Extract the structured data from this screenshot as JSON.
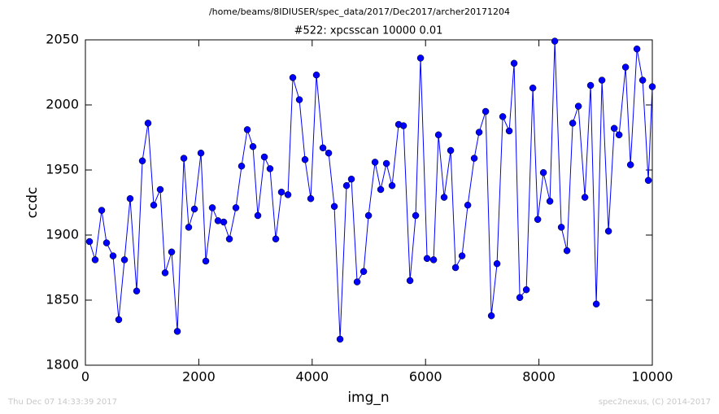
{
  "chart_data": {
    "type": "line",
    "title": "/home/beams/8IDIUSER/spec_data/2017/Dec2017/archer20171204",
    "subtitle": "#522: xpcsscan 10000 0.01",
    "xlabel": "img_n",
    "ylabel": "ccdc",
    "annotations": [
      "Thu Dec 07 14:33:39 2017",
      "spec2nexus, (C) 2014-2017"
    ],
    "x": [
      72,
      172,
      287,
      373,
      488,
      588,
      689,
      789,
      904,
      1005,
      1105,
      1205,
      1320,
      1406,
      1521,
      1622,
      1737,
      1822,
      1923,
      2038,
      2124,
      2239,
      2339,
      2440,
      2540,
      2655,
      2755,
      2856,
      2956,
      3042,
      3157,
      3257,
      3358,
      3458,
      3573,
      3659,
      3774,
      3874,
      3975,
      4075,
      4190,
      4291,
      4391,
      4492,
      4606,
      4692,
      4793,
      4908,
      4994,
      5109,
      5209,
      5310,
      5410,
      5525,
      5611,
      5726,
      5826,
      5912,
      6027,
      6142,
      6228,
      6328,
      6443,
      6529,
      6644,
      6745,
      6859,
      6945,
      7060,
      7161,
      7261,
      7362,
      7476,
      7562,
      7663,
      7778,
      7893,
      7979,
      8079,
      8194,
      8280,
      8395,
      8495,
      8596,
      8696,
      8811,
      8911,
      9012,
      9112,
      9227,
      9328,
      9414,
      9528,
      9615,
      9729,
      9830,
      9930,
      10000
    ],
    "series": [
      {
        "name": "ccdc",
        "color": "#0000ff",
        "values": [
          1895,
          1881,
          1919,
          1894,
          1884,
          1835,
          1881,
          1928,
          1857,
          1957,
          1986,
          1923,
          1935,
          1871,
          1887,
          1826,
          1959,
          1906,
          1920,
          1963,
          1880,
          1921,
          1911,
          1910,
          1897,
          1921,
          1953,
          1981,
          1968,
          1915,
          1960,
          1951,
          1897,
          1933,
          1931,
          2021,
          2004,
          1958,
          1928,
          2023,
          1967,
          1963,
          1922,
          1820,
          1938,
          1943,
          1864,
          1872,
          1915,
          1956,
          1935,
          1955,
          1938,
          1985,
          1984,
          1865,
          1915,
          2036,
          1882,
          1881,
          1977,
          1929,
          1965,
          1875,
          1884,
          1923,
          1959,
          1979,
          1995,
          1838,
          1878,
          1991,
          1980,
          2032,
          1852,
          1858,
          2013,
          1912,
          1948,
          1926,
          2049,
          1906,
          1888,
          1986,
          1999,
          1929,
          2015,
          1847,
          2019,
          1903,
          1982,
          1977,
          2029,
          1954,
          2043,
          2019,
          1942,
          2014
        ]
      }
    ],
    "xlim": [
      0,
      10000
    ],
    "ylim": [
      1800,
      2050
    ],
    "xticks": [
      0,
      2000,
      4000,
      6000,
      8000,
      10000
    ],
    "yticks": [
      1800,
      1850,
      1900,
      1950,
      2000,
      2050
    ],
    "grid": false,
    "markers": true
  }
}
